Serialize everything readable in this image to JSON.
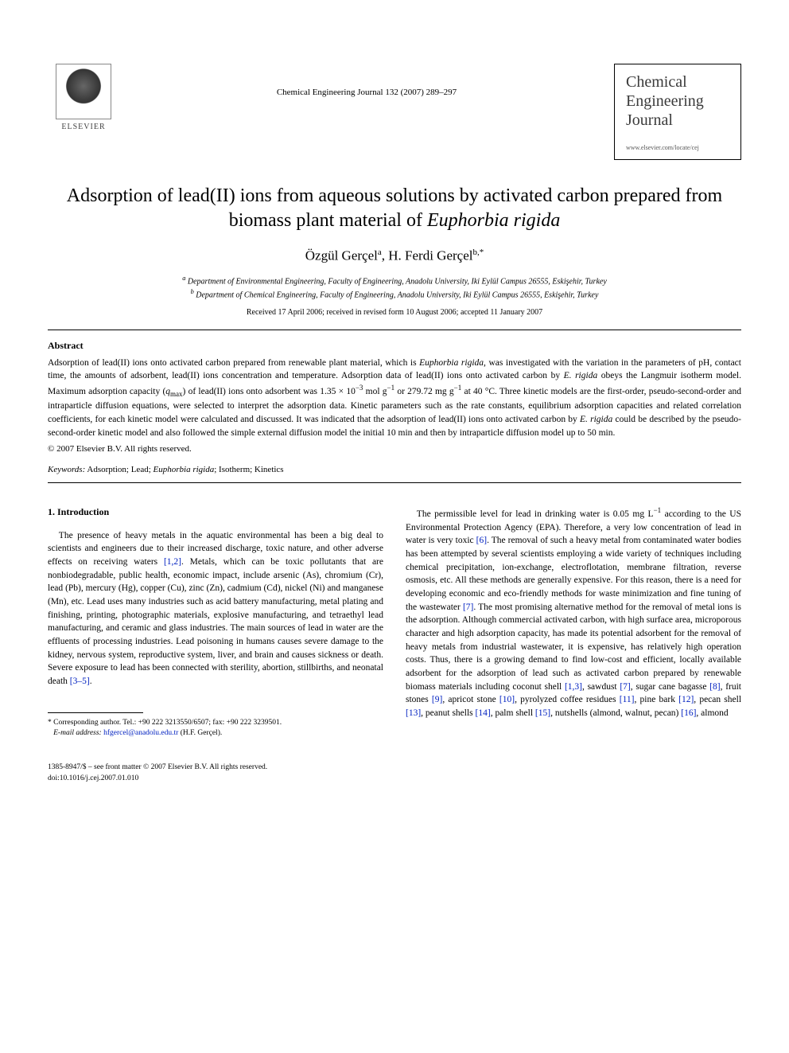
{
  "header": {
    "elsevier_label": "ELSEVIER",
    "journal_ref": "Chemical Engineering Journal 132 (2007) 289–297",
    "journal_box_name": "Chemical Engineering Journal",
    "journal_url": "www.elsevier.com/locate/cej"
  },
  "title_part1": "Adsorption of lead(II) ions from aqueous solutions by activated carbon prepared from biomass plant material of ",
  "title_species": "Euphorbia rigida",
  "authors": {
    "a1_name": "Özgül Gerçel",
    "a1_sup": "a",
    "a2_name": "H. Ferdi Gerçel",
    "a2_sup": "b,*"
  },
  "affiliations": {
    "a": "Department of Environmental Engineering, Faculty of Engineering, Anadolu University, Iki Eylül Campus 26555, Eskişehir, Turkey",
    "b": "Department of Chemical Engineering, Faculty of Engineering, Anadolu University, Iki Eylül Campus 26555, Eskişehir, Turkey"
  },
  "dates": "Received 17 April 2006; received in revised form 10 August 2006; accepted 11 January 2007",
  "abstract": {
    "heading": "Abstract",
    "p1a": "Adsorption of lead(II) ions onto activated carbon prepared from renewable plant material, which is ",
    "p1b": "Euphorbia rigida",
    "p1c": ", was investigated with the variation in the parameters of pH, contact time, the amounts of adsorbent, lead(II) ions concentration and temperature. Adsorption data of lead(II) ions onto activated carbon by ",
    "p1d": "E. rigida",
    "p1e": " obeys the Langmuir isotherm model. Maximum adsorption capacity (",
    "p1f": "q",
    "p1f_sub": "max",
    "p1g": ") of lead(II) ions onto adsorbent was 1.35 × 10",
    "p1g_sup": "−3",
    "p1h": " mol g",
    "p1h_sup": "−1",
    "p1i": " or 279.72 mg g",
    "p1i_sup": "−1",
    "p1j": " at 40 °C. Three kinetic models are the first-order, pseudo-second-order and intraparticle diffusion equations, were selected to interpret the adsorption data. Kinetic parameters such as the rate constants, equilibrium adsorption capacities and related correlation coefficients, for each kinetic model were calculated and discussed. It was indicated that the adsorption of lead(II) ions onto activated carbon by ",
    "p1k": "E. rigida",
    "p1l": " could be described by the pseudo-second-order kinetic model and also followed the simple external diffusion model the initial 10 min and then by intraparticle diffusion model up to 50 min.",
    "copyright": "© 2007 Elsevier B.V. All rights reserved."
  },
  "keywords": {
    "label": "Keywords:",
    "list_a": " Adsorption; Lead; ",
    "species": "Euphorbia rigida",
    "list_b": "; Isotherm; Kinetics"
  },
  "section1": {
    "heading": "1. Introduction",
    "col1_p1a": "The presence of heavy metals in the aquatic environmental has been a big deal to scientists and engineers due to their increased discharge, toxic nature, and other adverse effects on receiving waters ",
    "col1_ref1": "[1,2]",
    "col1_p1b": ". Metals, which can be toxic pollutants that are nonbiodegradable, public health, economic impact, include arsenic (As), chromium (Cr), lead (Pb), mercury (Hg), copper (Cu), zinc (Zn), cadmium (Cd), nickel (Ni) and manganese (Mn), etc. Lead uses many industries such as acid battery manufacturing, metal plating and finishing, printing, photographic materials, explosive manufacturing, and tetraethyl lead manufacturing, and ceramic and glass industries. The main sources of lead in water are the effluents of processing industries. Lead poisoning in humans causes severe damage to the kidney, nervous system, reproductive system, liver, and brain and causes sickness or death. Severe exposure to lead has been connected with sterility, abortion, stillbirths, and neonatal death ",
    "col1_ref2": "[3–5]",
    "col1_p1c": ".",
    "col2_p1a": "The permissible level for lead in drinking water is 0.05 mg L",
    "col2_sup1": "−1",
    "col2_p1b": " according to the US Environmental Protection Agency (EPA). Therefore, a very low concentration of lead in water is very toxic ",
    "col2_ref1": "[6]",
    "col2_p1c": ". The removal of such a heavy metal from contaminated water bodies has been attempted by several scientists employing a wide variety of techniques including chemical precipitation, ion-exchange, electroflotation, membrane filtration, reverse osmosis, etc. All these methods are generally expensive. For this reason, there is a need for developing economic and eco-friendly methods for waste minimization and fine tuning of the wastewater ",
    "col2_ref2": "[7]",
    "col2_p1d": ". The most promising alternative method for the removal of metal ions is the adsorption. Although commercial activated carbon, with high surface area, microporous character and high adsorption capacity, has made its potential adsorbent for the removal of heavy metals from industrial wastewater, it is expensive, has relatively high operation costs. Thus, there is a growing demand to find low-cost and efficient, locally available adsorbent for the adsorption of lead such as activated carbon prepared by renewable biomass materials including coconut shell ",
    "col2_ref3": "[1,3]",
    "col2_p1e": ", sawdust ",
    "col2_ref4": "[7]",
    "col2_p1f": ", sugar cane bagasse ",
    "col2_ref5": "[8]",
    "col2_p1g": ", fruit stones ",
    "col2_ref6": "[9]",
    "col2_p1h": ", apricot stone ",
    "col2_ref7": "[10]",
    "col2_p1i": ", pyrolyzed coffee residues ",
    "col2_ref8": "[11]",
    "col2_p1j": ", pine bark ",
    "col2_ref9": "[12]",
    "col2_p1k": ", pecan shell ",
    "col2_ref10": "[13]",
    "col2_p1l": ", peanut shells ",
    "col2_ref11": "[14]",
    "col2_p1m": ", palm shell ",
    "col2_ref12": "[15]",
    "col2_p1n": ", nutshells (almond, walnut, pecan) ",
    "col2_ref13": "[16]",
    "col2_p1o": ", almond"
  },
  "footnote": {
    "star": "*",
    "text1": " Corresponding author. Tel.: +90 222 3213550/6507; fax: +90 222 3239501.",
    "email_label": "E-mail address:",
    "email": " hfgercel@anadolu.edu.tr",
    "email_name": " (H.F. Gerçel)."
  },
  "footer": {
    "line1": "1385-8947/$ – see front matter © 2007 Elsevier B.V. All rights reserved.",
    "line2": "doi:10.1016/j.cej.2007.01.010"
  }
}
